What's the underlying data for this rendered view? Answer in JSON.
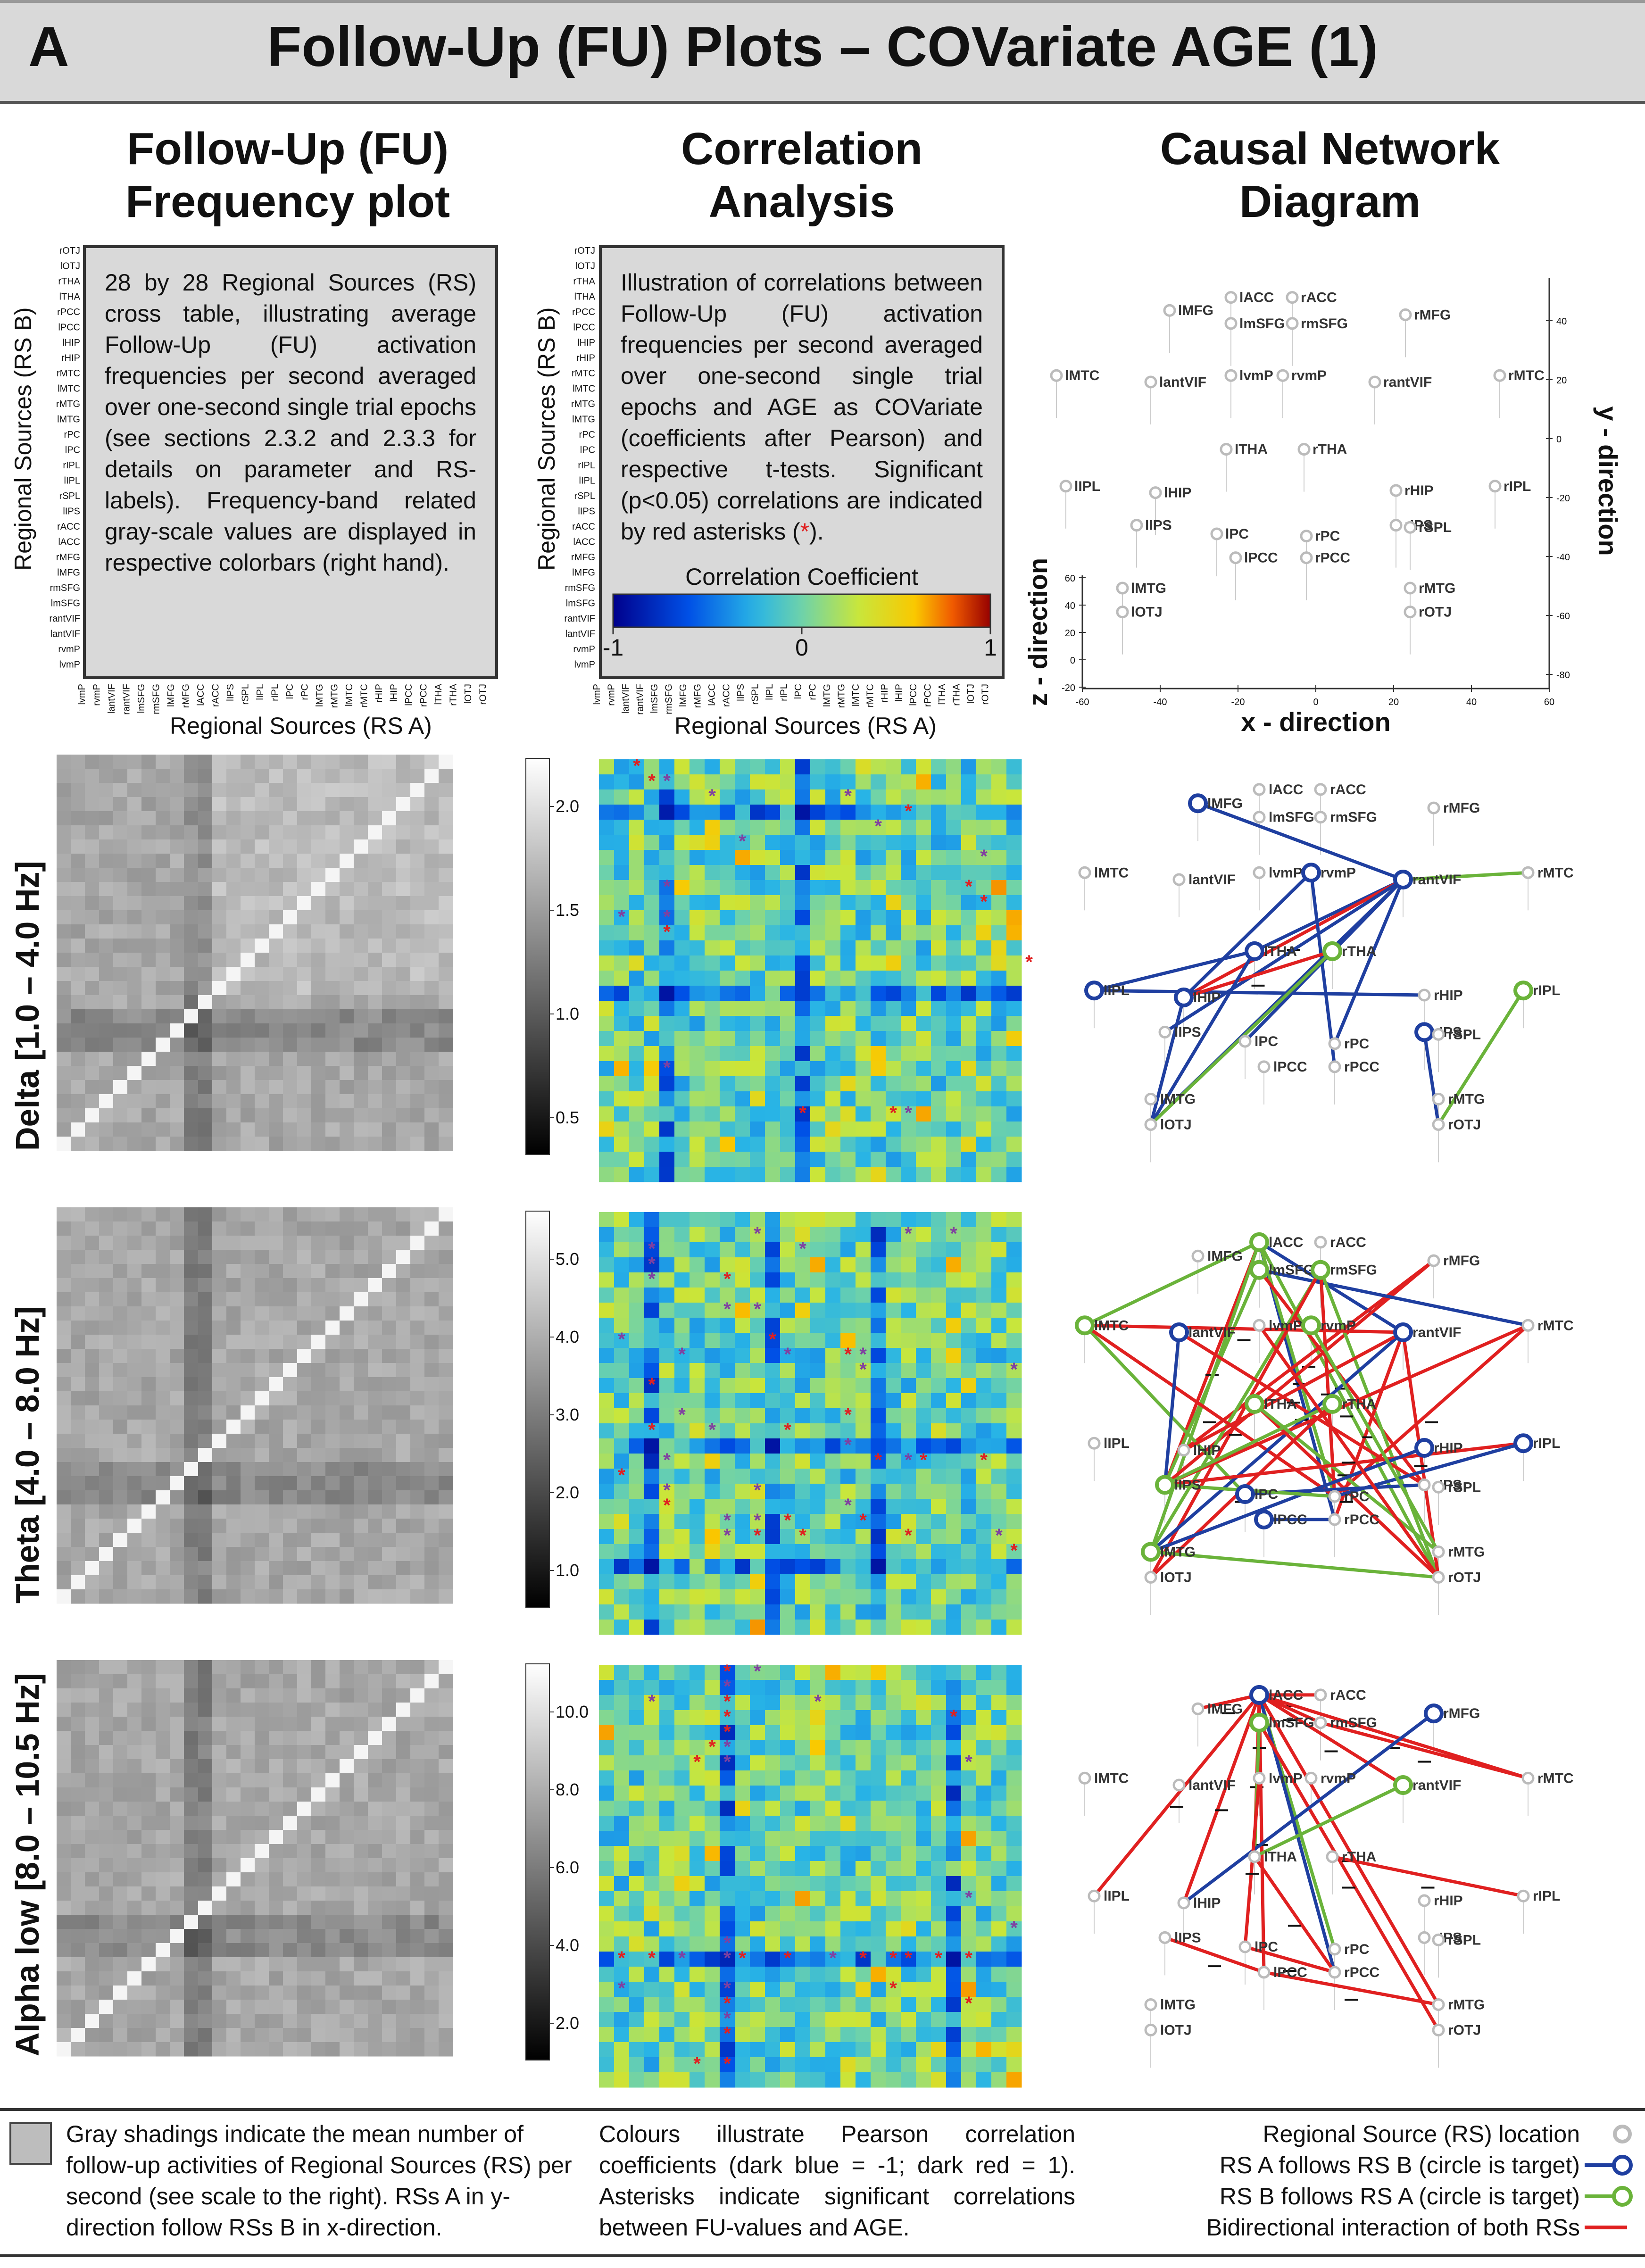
{
  "title": {
    "letter": "A",
    "text": "Follow-Up (FU) Plots – COVariate AGE (1)"
  },
  "column_headers": {
    "col1_line1": "Follow-Up (FU)",
    "col1_line2": "Frequency plot",
    "col2_line1": "Correlation",
    "col2_line2": "Analysis",
    "col3_line1": "Causal Network",
    "col3_line2": "Diagram"
  },
  "freq_box_text": "28 by 28 Regional Sources (RS) cross table, illustrating average Follow-Up (FU) activation frequencies per second averaged over one-second single trial epochs (see sections 2.3.2 and 2.3.3 for details on parameter and RS-labels). Frequency-band related gray-scale values are displayed in respective colorbars (right hand).",
  "corr_box_text_before": "Illustration of correlations between Follow-Up (FU) activation frequencies per second averaged over one-second single trial epochs and AGE as COVariate (coefficients after Pearson) and respective t-tests. Significant (p<0.05) correlations are indicated by red asterisks (",
  "corr_box_star": "*",
  "corr_box_text_after": ").",
  "colorbar": {
    "title": "Correlation Coefficient",
    "ticks": [
      "-1",
      "0",
      "1"
    ]
  },
  "axis_labels": {
    "rs_a": "Regional Sources (RS A)",
    "rs_b": "Regional Sources (RS B)",
    "x_dir": "x - direction",
    "y_dir": "y - direction",
    "z_dir": "z - direction"
  },
  "regional_sources": [
    "rOTJ",
    "lOTJ",
    "rTHA",
    "lTHA",
    "rPCC",
    "lPCC",
    "lHIP",
    "rHIP",
    "rMTC",
    "lMTC",
    "rMTG",
    "lMTG",
    "rPC",
    "lPC",
    "rIPL",
    "lIPL",
    "rSPL",
    "lIPS",
    "rACC",
    "lACC",
    "rMFG",
    "lMFG",
    "rmSFG",
    "lmSFG",
    "rantVIF",
    "lantVIF",
    "rvmP",
    "lvmP"
  ],
  "network_nodes": [
    "lMFG",
    "lACC",
    "rACC",
    "rMFG",
    "lmSFG",
    "rmSFG",
    "lMTC",
    "lantVIF",
    "lvmP",
    "rvmP",
    "rantVIF",
    "rMTC",
    "lTHA",
    "rTHA",
    "lIPL",
    "lHIP",
    "rHIP",
    "rIPL",
    "lIPS",
    "lPC",
    "rPC",
    "rIPS",
    "rSPL",
    "lPCC",
    "rPCC",
    "lMTG",
    "rMTG",
    "lOTJ",
    "rOTJ"
  ],
  "coord_ticks": {
    "x": [
      "-60",
      "-40",
      "-20",
      "0",
      "20",
      "40",
      "60"
    ],
    "y": [
      "40",
      "20",
      "0",
      "-20",
      "-40",
      "-60",
      "-80"
    ],
    "z": [
      "60",
      "40",
      "20",
      "0",
      "-20"
    ]
  },
  "bands": [
    {
      "label": "Delta [1.0 – 4.0 Hz]",
      "ticks": [
        "2.0",
        "1.5",
        "1.0",
        "0.5"
      ]
    },
    {
      "label": "Theta [4.0 – 8.0 Hz]",
      "ticks": [
        "5.0",
        "4.0",
        "3.0",
        "2.0",
        "1.0"
      ]
    },
    {
      "label": "Alpha low [8.0 – 10.5 Hz]",
      "ticks": [
        "10.0",
        "8.0",
        "6.0",
        "4.0",
        "2.0"
      ]
    }
  ],
  "footer": {
    "gray_text": "Gray shadings indicate the mean number of follow-up activities of Regional Sources (RS) per second (see scale to the right). RSs A in y-direction follow RSs B in x-direction.",
    "colour_text": "Colours illustrate Pearson correlation coefficients (dark blue = -1; dark red = 1). Asterisks indicate significant correlations between FU-values and AGE.",
    "legend": [
      {
        "label": "Regional Source (RS) location",
        "color": "#bbbbbb"
      },
      {
        "label": "RS A follows RS B (circle is target)",
        "color": "#1f3fa0"
      },
      {
        "label": "RS B follows RS A (circle is target)",
        "color": "#6ab33a"
      },
      {
        "label": "Bidirectional interaction of both RSs",
        "color": "#e02020"
      }
    ]
  },
  "colors": {
    "blue": "#1f3fa0",
    "green": "#6ab33a",
    "red": "#e02020",
    "star": "#e02020"
  }
}
